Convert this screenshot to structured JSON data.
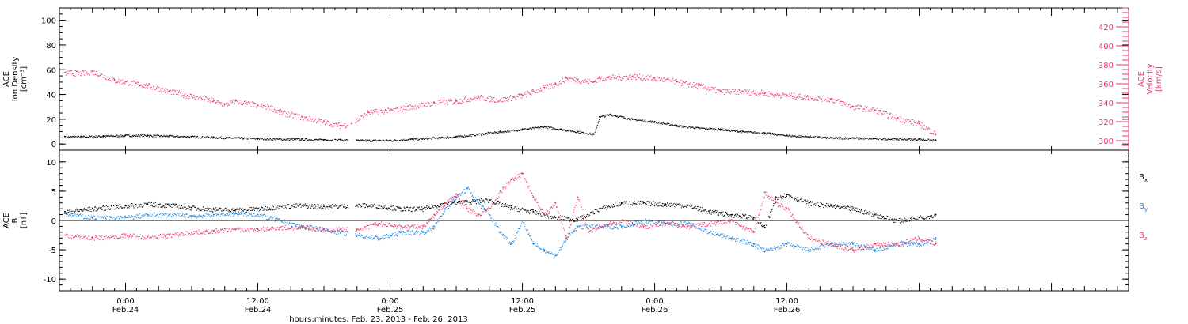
{
  "chart_data": [
    {
      "type": "scatter",
      "ylabel_lines": [
        "ACE",
        "Ion Density",
        "[cm⁻³]"
      ],
      "y2label_lines": [
        "ACE",
        "Velocity",
        "[km/s]"
      ],
      "ylim": [
        -5,
        110
      ],
      "yticks": [
        0,
        20,
        40,
        60,
        80,
        100
      ],
      "y2lim": [
        290,
        440
      ],
      "y2ticks": [
        300,
        320,
        340,
        360,
        380,
        400,
        420
      ],
      "colors": {
        "density": "#000000",
        "velocity": "#e8396a"
      },
      "series": [
        {
          "axis": "left",
          "color": "#000000",
          "points": [
            [
              -5.5,
              6
            ],
            [
              -4,
              6
            ],
            [
              -2,
              6.5
            ],
            [
              0,
              7
            ],
            [
              2,
              7
            ],
            [
              4,
              6.5
            ],
            [
              6,
              6
            ],
            [
              8,
              5.5
            ],
            [
              10,
              5
            ],
            [
              12,
              4.5
            ],
            [
              14,
              4
            ],
            [
              16,
              4
            ],
            [
              18,
              3.5
            ],
            [
              19.5,
              3.5
            ],
            [
              21,
              3
            ],
            [
              23,
              3
            ],
            [
              24,
              3
            ],
            [
              26,
              4
            ],
            [
              28,
              5
            ],
            [
              30,
              6
            ],
            [
              32,
              8
            ],
            [
              34,
              10
            ],
            [
              36,
              12
            ],
            [
              38,
              14
            ],
            [
              39.5,
              12
            ],
            [
              41,
              10
            ],
            [
              42.5,
              8
            ],
            [
              43,
              22
            ],
            [
              44,
              24
            ],
            [
              46,
              20
            ],
            [
              48,
              18
            ],
            [
              50,
              15
            ],
            [
              52,
              13
            ],
            [
              54,
              12
            ],
            [
              56,
              10
            ],
            [
              58,
              9
            ],
            [
              60,
              7
            ],
            [
              62,
              6
            ],
            [
              64,
              5
            ],
            [
              66,
              5
            ],
            [
              68,
              4.5
            ],
            [
              70,
              4
            ],
            [
              72,
              4
            ],
            [
              73.5,
              3
            ]
          ]
        },
        {
          "axis": "right",
          "color": "#e8396a",
          "points": [
            [
              -5.5,
              372
            ],
            [
              -4,
              371
            ],
            [
              -3,
              373
            ],
            [
              -1,
              364
            ],
            [
              0,
              362
            ],
            [
              2,
              358
            ],
            [
              4,
              352
            ],
            [
              6,
              347
            ],
            [
              8,
              342
            ],
            [
              9,
              338
            ],
            [
              10,
              342
            ],
            [
              12,
              337
            ],
            [
              13,
              336
            ],
            [
              14,
              330
            ],
            [
              16,
              325
            ],
            [
              18,
              320
            ],
            [
              19.5,
              316
            ],
            [
              20.5,
              318
            ],
            [
              22,
              330
            ],
            [
              24,
              332
            ],
            [
              26,
              336
            ],
            [
              28,
              340
            ],
            [
              30,
              342
            ],
            [
              32,
              346
            ],
            [
              34,
              343
            ],
            [
              36,
              348
            ],
            [
              37,
              352
            ],
            [
              38,
              356
            ],
            [
              39,
              360
            ],
            [
              40,
              366
            ],
            [
              41,
              364
            ],
            [
              42.5,
              362
            ],
            [
              43,
              366
            ],
            [
              46,
              368
            ],
            [
              48,
              366
            ],
            [
              50,
              362
            ],
            [
              52,
              358
            ],
            [
              54,
              352
            ],
            [
              56,
              352
            ],
            [
              58,
              350
            ],
            [
              60,
              348
            ],
            [
              62,
              346
            ],
            [
              64,
              344
            ],
            [
              66,
              336
            ],
            [
              68,
              332
            ],
            [
              70,
              324
            ],
            [
              72,
              318
            ],
            [
              73.5,
              307
            ]
          ]
        }
      ]
    },
    {
      "type": "scatter",
      "ylabel_lines": [
        "ACE",
        "B",
        "[nT]"
      ],
      "ylim": [
        -12,
        12
      ],
      "yticks": [
        -10,
        -5,
        0,
        5,
        10
      ],
      "legend_position": "right",
      "series": [
        {
          "name": "B",
          "sub": "x",
          "color": "#000000",
          "points": [
            [
              -5.5,
              1.5
            ],
            [
              -3,
              2
            ],
            [
              0,
              2.5
            ],
            [
              2,
              2.8
            ],
            [
              4,
              2.6
            ],
            [
              6,
              2.2
            ],
            [
              8,
              1.9
            ],
            [
              10,
              1.8
            ],
            [
              12,
              2
            ],
            [
              14,
              2.4
            ],
            [
              16,
              2.6
            ],
            [
              18,
              2.4
            ],
            [
              19.5,
              2.5
            ],
            [
              21,
              2.6
            ],
            [
              23,
              2.5
            ],
            [
              25,
              2
            ],
            [
              27,
              2
            ],
            [
              29,
              3
            ],
            [
              31,
              3.2
            ],
            [
              33,
              3.5
            ],
            [
              35,
              2.2
            ],
            [
              37,
              1.5
            ],
            [
              39,
              0.5
            ],
            [
              41,
              0.2
            ],
            [
              43,
              2
            ],
            [
              45,
              3
            ],
            [
              47,
              3
            ],
            [
              49,
              2.8
            ],
            [
              51,
              2.6
            ],
            [
              53,
              1.5
            ],
            [
              55,
              1
            ],
            [
              57,
              0.5
            ],
            [
              58,
              -1.2
            ],
            [
              59,
              4
            ],
            [
              60,
              4.4
            ],
            [
              62,
              3
            ],
            [
              64,
              2.5
            ],
            [
              66,
              2
            ],
            [
              68,
              1
            ],
            [
              70,
              0
            ],
            [
              72,
              0.5
            ],
            [
              73.5,
              1
            ]
          ]
        },
        {
          "name": "B",
          "sub": "y",
          "color": "#1a86e0",
          "points": [
            [
              -5.5,
              1.2
            ],
            [
              -3,
              0.5
            ],
            [
              0,
              0.5
            ],
            [
              2,
              1
            ],
            [
              4,
              1
            ],
            [
              6,
              0.8
            ],
            [
              8,
              1
            ],
            [
              10,
              1.2
            ],
            [
              12,
              1
            ],
            [
              14,
              0
            ],
            [
              16,
              -1
            ],
            [
              18,
              -1.5
            ],
            [
              19.5,
              -2
            ],
            [
              21,
              -2.5
            ],
            [
              23,
              -3
            ],
            [
              25,
              -2
            ],
            [
              27,
              -2
            ],
            [
              28,
              -1
            ],
            [
              29,
              2
            ],
            [
              30,
              4
            ],
            [
              31,
              5.5
            ],
            [
              32,
              3
            ],
            [
              33,
              1
            ],
            [
              34,
              -2
            ],
            [
              35,
              -4
            ],
            [
              36,
              0
            ],
            [
              37,
              -4
            ],
            [
              38,
              -5
            ],
            [
              39,
              -6
            ],
            [
              40,
              -3
            ],
            [
              41,
              -1
            ],
            [
              43,
              -1
            ],
            [
              45,
              -1
            ],
            [
              47,
              0
            ],
            [
              49,
              -0.5
            ],
            [
              51,
              -0.5
            ],
            [
              53,
              -2
            ],
            [
              55,
              -3
            ],
            [
              57,
              -4
            ],
            [
              58,
              -5.2
            ],
            [
              60,
              -4
            ],
            [
              62,
              -5
            ],
            [
              64,
              -4
            ],
            [
              66,
              -4
            ],
            [
              68,
              -5
            ],
            [
              70,
              -4
            ],
            [
              72,
              -4
            ],
            [
              73.5,
              -3
            ]
          ]
        },
        {
          "name": "B",
          "sub": "z",
          "color": "#e8396a",
          "points": [
            [
              -5.5,
              -2.5
            ],
            [
              -3,
              -3
            ],
            [
              0,
              -2.5
            ],
            [
              2,
              -2.8
            ],
            [
              4,
              -2.5
            ],
            [
              6,
              -2
            ],
            [
              8,
              -1.8
            ],
            [
              10,
              -1.5
            ],
            [
              12,
              -1.5
            ],
            [
              14,
              -1.2
            ],
            [
              16,
              -1.2
            ],
            [
              18,
              -1.5
            ],
            [
              19.5,
              -1.5
            ],
            [
              21,
              -1.5
            ],
            [
              23,
              -0.5
            ],
            [
              25,
              -1
            ],
            [
              27,
              -1
            ],
            [
              28,
              1
            ],
            [
              29,
              3
            ],
            [
              30,
              4.5
            ],
            [
              31,
              2
            ],
            [
              32,
              1
            ],
            [
              33,
              2
            ],
            [
              34,
              5
            ],
            [
              35,
              7
            ],
            [
              36,
              8
            ],
            [
              37,
              4
            ],
            [
              38,
              1
            ],
            [
              39,
              3
            ],
            [
              40,
              -3
            ],
            [
              41,
              4
            ],
            [
              42,
              -2
            ],
            [
              43,
              -1
            ],
            [
              45,
              0
            ],
            [
              47,
              -1
            ],
            [
              49,
              -0.5
            ],
            [
              51,
              -1
            ],
            [
              53,
              -0.5
            ],
            [
              55,
              0
            ],
            [
              57,
              -2
            ],
            [
              58,
              4.8
            ],
            [
              59,
              3
            ],
            [
              60,
              2
            ],
            [
              62,
              -3
            ],
            [
              64,
              -4
            ],
            [
              66,
              -5
            ],
            [
              68,
              -4
            ],
            [
              70,
              -4
            ],
            [
              72,
              -3
            ],
            [
              73.5,
              -4
            ]
          ]
        }
      ]
    }
  ],
  "x_axis": {
    "xlim": [
      -6,
      91
    ],
    "major_ticks": [
      {
        "hour": 0,
        "line1": "0:00",
        "line2": "Feb.24"
      },
      {
        "hour": 12,
        "line1": "12:00",
        "line2": "Feb.24"
      },
      {
        "hour": 24,
        "line1": "0:00",
        "line2": "Feb.25"
      },
      {
        "hour": 36,
        "line1": "12:00",
        "line2": "Feb.25"
      },
      {
        "hour": 48,
        "line1": "0:00",
        "line2": "Feb.26"
      },
      {
        "hour": 60,
        "line1": "12:00",
        "line2": "Feb.26"
      }
    ],
    "minor_step_hours": 1,
    "label": "hours:minutes, Feb. 23, 2013 - Feb. 26, 2013"
  }
}
